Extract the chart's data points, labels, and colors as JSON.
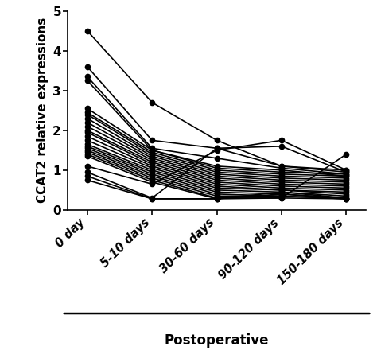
{
  "x_labels": [
    "0 day",
    "5-10 days",
    "30-60 days",
    "90-120 days",
    "150-180 days"
  ],
  "x_positions": [
    0,
    1,
    2,
    3,
    4
  ],
  "ylabel": "CCAT2 relative expressions",
  "xlabel": "Postoperative",
  "ylim": [
    0,
    5
  ],
  "yticks": [
    0,
    1,
    2,
    3,
    4,
    5
  ],
  "line_color": "#000000",
  "marker": "o",
  "markersize": 4.5,
  "linewidth": 1.2,
  "series": [
    [
      4.5,
      2.7,
      1.75,
      1.1,
      0.95
    ],
    [
      3.6,
      1.75,
      1.55,
      1.1,
      1.0
    ],
    [
      3.35,
      1.55,
      1.3,
      1.05,
      0.9
    ],
    [
      3.25,
      1.5,
      1.1,
      1.0,
      0.85
    ],
    [
      2.55,
      1.5,
      1.05,
      0.95,
      0.9
    ],
    [
      2.45,
      1.45,
      1.0,
      0.9,
      0.85
    ],
    [
      2.4,
      1.4,
      0.95,
      0.85,
      0.8
    ],
    [
      2.3,
      1.35,
      0.9,
      0.8,
      0.75
    ],
    [
      2.2,
      1.3,
      0.85,
      0.75,
      0.7
    ],
    [
      2.1,
      1.25,
      0.8,
      0.7,
      0.65
    ],
    [
      2.0,
      1.2,
      0.75,
      0.65,
      0.6
    ],
    [
      1.95,
      1.15,
      0.7,
      0.6,
      0.55
    ],
    [
      1.85,
      1.1,
      0.65,
      0.55,
      0.5
    ],
    [
      1.75,
      1.05,
      0.6,
      0.5,
      0.45
    ],
    [
      1.65,
      1.0,
      0.55,
      0.5,
      0.4
    ],
    [
      1.6,
      0.95,
      0.5,
      0.45,
      0.35
    ],
    [
      1.55,
      0.9,
      0.45,
      0.4,
      0.3
    ],
    [
      1.5,
      0.85,
      0.4,
      0.35,
      0.28
    ],
    [
      1.45,
      0.8,
      0.35,
      0.35,
      0.28
    ],
    [
      1.4,
      0.75,
      0.3,
      0.3,
      0.28
    ],
    [
      1.35,
      0.7,
      0.28,
      0.3,
      1.4
    ],
    [
      1.1,
      0.65,
      1.5,
      1.75,
      1.0
    ],
    [
      0.95,
      0.3,
      1.55,
      1.6,
      0.95
    ],
    [
      0.85,
      0.28,
      0.28,
      0.45,
      0.3
    ],
    [
      0.75,
      0.28,
      0.28,
      0.4,
      0.28
    ]
  ],
  "background_color": "#ffffff",
  "spine_color": "#000000",
  "tick_fontsize": 10.5,
  "ylabel_fontsize": 11,
  "xlabel_fontsize": 12,
  "ytick_fontsize": 11
}
